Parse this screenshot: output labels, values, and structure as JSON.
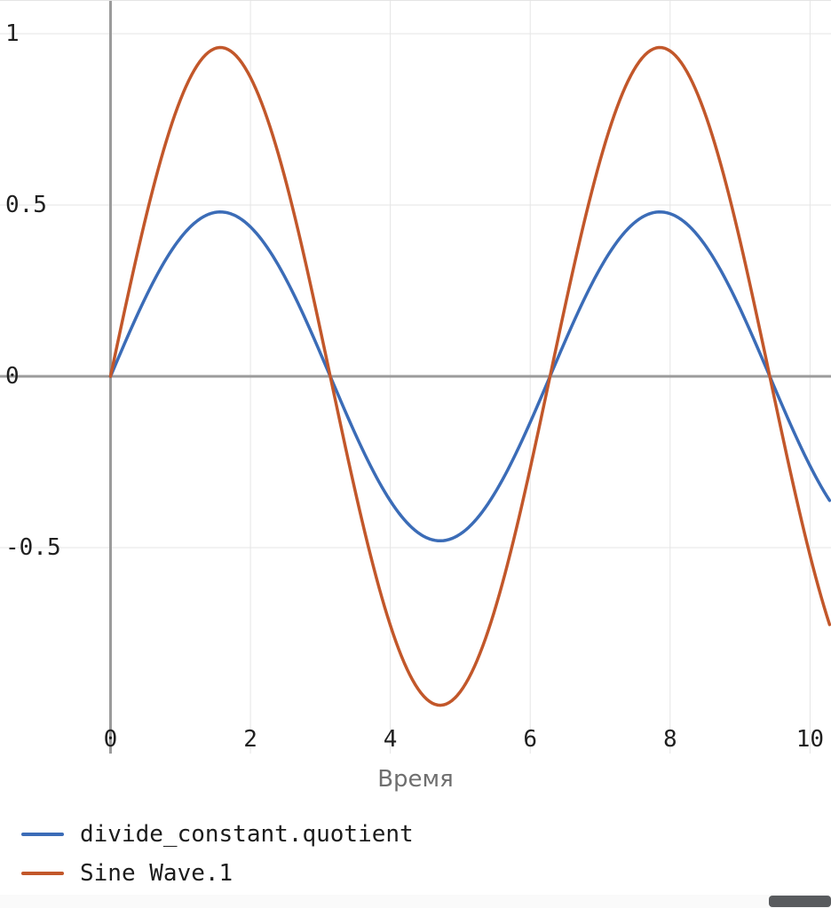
{
  "chart_data": {
    "type": "line",
    "title": "",
    "xlabel": "Время",
    "ylabel": "",
    "grid": true,
    "legend_position": "bottom-left",
    "xlim": [
      -1.58,
      10.3
    ],
    "ylim": [
      -1.101,
      1.096
    ],
    "x_ticks": [
      0,
      2,
      4,
      6,
      8,
      10
    ],
    "x_tick_labels": [
      "0",
      "2",
      "4",
      "6",
      "8",
      "10"
    ],
    "y_ticks": [
      1,
      0.5,
      0,
      -0.5
    ],
    "y_tick_labels": [
      "1",
      "0.5",
      "0",
      "-0.5"
    ],
    "colors": {
      "grid": "#e5e5e5",
      "axis": "#9b9b9b",
      "tick_text": "#1f1f1f",
      "xlabel_text": "#6f6f6f"
    },
    "series": [
      {
        "name": "divide_constant.quotient",
        "color": "#3b6cb7",
        "shape": "sine",
        "amplitude": 0.48,
        "angular_frequency": 1,
        "phase": 0,
        "x_start": 0,
        "x_end": 10.3,
        "x": [
          0,
          0.4,
          0.8,
          1.2,
          1.6,
          2,
          2.4,
          2.8,
          3.2,
          3.6,
          4,
          4.4,
          4.8,
          5.2,
          5.6,
          6,
          6.4,
          6.8,
          7.2,
          7.6,
          8,
          8.4,
          8.8,
          9.2,
          9.6,
          10,
          10.2
        ],
        "y": [
          0,
          0.187,
          0.344,
          0.447,
          0.48,
          0.436,
          0.324,
          0.161,
          -0.028,
          -0.212,
          -0.363,
          -0.457,
          -0.478,
          -0.424,
          -0.303,
          -0.134,
          0.056,
          0.237,
          0.381,
          0.465,
          0.475,
          0.41,
          0.281,
          0.107,
          -0.084,
          -0.261,
          -0.336
        ]
      },
      {
        "name": "Sine Wave.1",
        "color": "#c2572a",
        "shape": "sine",
        "amplitude": 0.96,
        "angular_frequency": 1,
        "phase": 0,
        "x_start": 0,
        "x_end": 10.3,
        "x": [
          0,
          0.4,
          0.8,
          1.2,
          1.6,
          2,
          2.4,
          2.8,
          3.2,
          3.6,
          4,
          4.4,
          4.8,
          5.2,
          5.6,
          6,
          6.4,
          6.8,
          7.2,
          7.6,
          8,
          8.4,
          8.8,
          9.2,
          9.6,
          10,
          10.2
        ],
        "y": [
          0,
          0.374,
          0.689,
          0.895,
          0.96,
          0.873,
          0.648,
          0.322,
          -0.056,
          -0.425,
          -0.727,
          -0.914,
          -0.956,
          -0.848,
          -0.606,
          -0.268,
          0.112,
          0.474,
          0.762,
          0.929,
          0.95,
          0.82,
          0.562,
          0.214,
          -0.167,
          -0.522,
          -0.672
        ]
      }
    ]
  }
}
